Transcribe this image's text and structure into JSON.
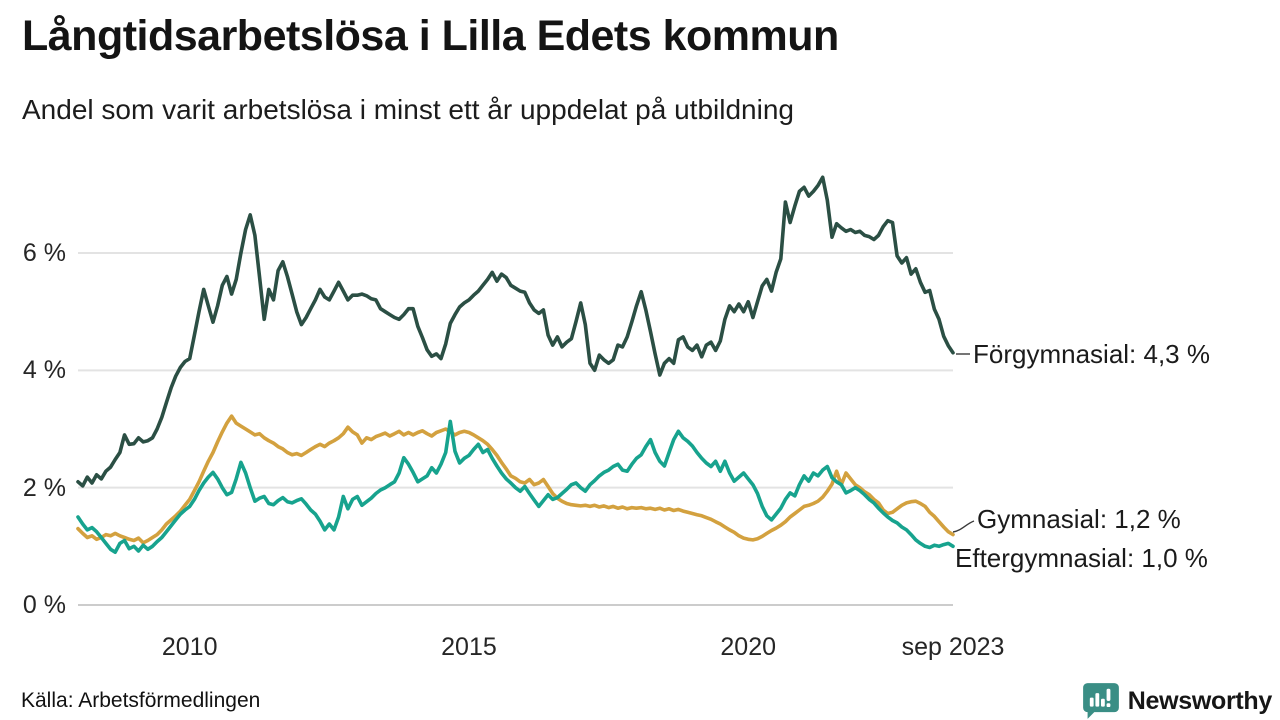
{
  "title": "Långtidsarbetslösa i Lilla Edets kommun",
  "subtitle": "Andel som varit arbetslösa i minst ett år uppdelat på utbildning",
  "source": "Källa: Arbetsförmedlingen",
  "branding": {
    "name": "Newsworthy",
    "color": "#3a8e85",
    "icon": "bar-chart-speech-bubble-icon"
  },
  "colors": {
    "forgymnasial": "#2b4f44",
    "gymnasial": "#d3a13f",
    "eftergymnasial": "#17a38e",
    "gridline": "#e3e3e3",
    "zeroline": "#cccccc",
    "connector": "#3a3a3a"
  },
  "chart_data": {
    "type": "line",
    "title": "Långtidsarbetslösa i Lilla Edets kommun",
    "subtitle": "Andel som varit arbetslösa i minst ett år uppdelat på utbildning",
    "x_unit": "month",
    "x_start": 2008.0,
    "x_end": 2023.6667,
    "x_note": "monthly values Jan 2008 - Sep 2023",
    "ylim": [
      0,
      7.5
    ],
    "ytick_values": [
      0,
      2,
      4,
      6
    ],
    "ytick_labels": [
      "0 %",
      "2 %",
      "4 %",
      "6 %"
    ],
    "xticks": [
      {
        "label": "2010",
        "t": 2010.0
      },
      {
        "label": "2015",
        "t": 2015.0
      },
      {
        "label": "2020",
        "t": 2020.0
      },
      {
        "label": "sep 2023",
        "t": 2023.6667
      }
    ],
    "grid": "horizontal-only",
    "legend_position": "end-of-line-labels",
    "series": [
      {
        "name": "Förgymnasial",
        "end_label": "Förgymnasial: 4,3 %",
        "end_value": 4.3,
        "color": "#2b4f44",
        "values": [
          2.1,
          2.03,
          2.18,
          2.08,
          2.22,
          2.15,
          2.28,
          2.35,
          2.48,
          2.6,
          2.9,
          2.74,
          2.75,
          2.85,
          2.78,
          2.8,
          2.85,
          3.0,
          3.2,
          3.45,
          3.7,
          3.9,
          4.05,
          4.15,
          4.2,
          4.6,
          5.0,
          5.38,
          5.1,
          4.82,
          5.1,
          5.45,
          5.6,
          5.3,
          5.55,
          6.0,
          6.4,
          6.65,
          6.3,
          5.6,
          4.87,
          5.38,
          5.2,
          5.7,
          5.85,
          5.6,
          5.3,
          5.0,
          4.78,
          4.9,
          5.05,
          5.2,
          5.38,
          5.25,
          5.2,
          5.35,
          5.5,
          5.35,
          5.2,
          5.28,
          5.28,
          5.3,
          5.27,
          5.22,
          5.2,
          5.05,
          5.0,
          4.95,
          4.9,
          4.87,
          4.95,
          5.05,
          5.05,
          4.75,
          4.56,
          4.35,
          4.24,
          4.28,
          4.2,
          4.45,
          4.8,
          4.95,
          5.08,
          5.15,
          5.2,
          5.28,
          5.35,
          5.45,
          5.55,
          5.67,
          5.52,
          5.64,
          5.58,
          5.45,
          5.4,
          5.35,
          5.33,
          5.15,
          5.03,
          4.97,
          5.03,
          4.6,
          4.43,
          4.57,
          4.4,
          4.48,
          4.54,
          4.83,
          5.15,
          4.78,
          4.12,
          4.0,
          4.26,
          4.18,
          4.12,
          4.18,
          4.43,
          4.4,
          4.57,
          4.83,
          5.1,
          5.34,
          5.03,
          4.66,
          4.28,
          3.92,
          4.12,
          4.2,
          4.12,
          4.52,
          4.57,
          4.4,
          4.34,
          4.43,
          4.23,
          4.43,
          4.48,
          4.34,
          4.5,
          4.87,
          5.1,
          5.0,
          5.13,
          5.0,
          5.17,
          4.9,
          5.17,
          5.44,
          5.55,
          5.35,
          5.67,
          5.9,
          6.87,
          6.52,
          6.8,
          7.05,
          7.12,
          6.97,
          7.05,
          7.15,
          7.29,
          6.9,
          6.27,
          6.5,
          6.43,
          6.37,
          6.4,
          6.35,
          6.37,
          6.3,
          6.28,
          6.23,
          6.3,
          6.45,
          6.55,
          6.52,
          5.95,
          5.83,
          5.92,
          5.64,
          5.73,
          5.5,
          5.33,
          5.36,
          5.04,
          4.87,
          4.58,
          4.42,
          4.3
        ]
      },
      {
        "name": "Gymnasial",
        "end_label": "Gymnasial: 1,2 %",
        "end_value": 1.2,
        "color": "#d3a13f",
        "values": [
          1.3,
          1.22,
          1.15,
          1.18,
          1.12,
          1.15,
          1.2,
          1.18,
          1.22,
          1.18,
          1.15,
          1.12,
          1.1,
          1.14,
          1.06,
          1.1,
          1.15,
          1.2,
          1.28,
          1.38,
          1.45,
          1.52,
          1.6,
          1.7,
          1.8,
          1.95,
          2.1,
          2.28,
          2.45,
          2.6,
          2.78,
          2.95,
          3.1,
          3.22,
          3.1,
          3.05,
          3.0,
          2.95,
          2.9,
          2.92,
          2.85,
          2.8,
          2.76,
          2.7,
          2.66,
          2.6,
          2.56,
          2.58,
          2.55,
          2.6,
          2.65,
          2.7,
          2.74,
          2.7,
          2.76,
          2.8,
          2.85,
          2.92,
          3.03,
          2.95,
          2.9,
          2.76,
          2.85,
          2.82,
          2.87,
          2.9,
          2.93,
          2.88,
          2.92,
          2.96,
          2.9,
          2.94,
          2.9,
          2.94,
          2.97,
          2.92,
          2.88,
          2.94,
          2.97,
          3.0,
          2.95,
          2.9,
          2.94,
          2.96,
          2.94,
          2.9,
          2.85,
          2.8,
          2.74,
          2.65,
          2.55,
          2.43,
          2.32,
          2.2,
          2.16,
          2.1,
          2.08,
          2.14,
          2.05,
          2.08,
          2.14,
          2.02,
          1.9,
          1.82,
          1.77,
          1.73,
          1.71,
          1.7,
          1.69,
          1.7,
          1.68,
          1.7,
          1.67,
          1.69,
          1.66,
          1.68,
          1.65,
          1.67,
          1.64,
          1.66,
          1.65,
          1.66,
          1.64,
          1.65,
          1.63,
          1.65,
          1.62,
          1.64,
          1.61,
          1.63,
          1.6,
          1.58,
          1.56,
          1.54,
          1.52,
          1.49,
          1.46,
          1.42,
          1.38,
          1.33,
          1.28,
          1.24,
          1.18,
          1.14,
          1.12,
          1.11,
          1.13,
          1.17,
          1.22,
          1.27,
          1.31,
          1.36,
          1.42,
          1.5,
          1.56,
          1.62,
          1.68,
          1.7,
          1.73,
          1.77,
          1.84,
          1.94,
          2.06,
          2.28,
          2.05,
          2.25,
          2.15,
          2.05,
          2.0,
          1.93,
          1.88,
          1.8,
          1.74,
          1.62,
          1.56,
          1.58,
          1.64,
          1.7,
          1.74,
          1.76,
          1.77,
          1.73,
          1.68,
          1.58,
          1.51,
          1.42,
          1.33,
          1.25,
          1.2
        ]
      },
      {
        "name": "Eftergymnasial",
        "end_label": "Eftergymnasial: 1,0 %",
        "end_value": 1.0,
        "color": "#17a38e",
        "values": [
          1.5,
          1.38,
          1.28,
          1.32,
          1.25,
          1.15,
          1.05,
          0.95,
          0.9,
          1.05,
          1.1,
          0.96,
          1.0,
          0.92,
          1.02,
          0.95,
          1.0,
          1.08,
          1.15,
          1.25,
          1.35,
          1.45,
          1.55,
          1.62,
          1.68,
          1.8,
          1.95,
          2.08,
          2.18,
          2.26,
          2.15,
          2.0,
          1.88,
          1.92,
          2.15,
          2.43,
          2.25,
          2.0,
          1.77,
          1.82,
          1.85,
          1.73,
          1.71,
          1.78,
          1.83,
          1.76,
          1.74,
          1.78,
          1.81,
          1.72,
          1.62,
          1.55,
          1.43,
          1.28,
          1.38,
          1.28,
          1.5,
          1.85,
          1.64,
          1.8,
          1.85,
          1.7,
          1.76,
          1.82,
          1.9,
          1.96,
          2.0,
          2.05,
          2.1,
          2.25,
          2.51,
          2.4,
          2.26,
          2.1,
          2.15,
          2.2,
          2.34,
          2.25,
          2.4,
          2.6,
          3.13,
          2.62,
          2.42,
          2.5,
          2.55,
          2.65,
          2.74,
          2.6,
          2.65,
          2.5,
          2.37,
          2.25,
          2.15,
          2.08,
          2.0,
          1.94,
          2.02,
          1.9,
          1.79,
          1.68,
          1.78,
          1.88,
          1.8,
          1.83,
          1.9,
          1.97,
          2.05,
          2.08,
          2.0,
          1.94,
          2.05,
          2.12,
          2.2,
          2.26,
          2.3,
          2.36,
          2.4,
          2.3,
          2.28,
          2.4,
          2.5,
          2.56,
          2.7,
          2.82,
          2.6,
          2.45,
          2.37,
          2.6,
          2.82,
          2.96,
          2.85,
          2.79,
          2.71,
          2.6,
          2.5,
          2.42,
          2.36,
          2.45,
          2.28,
          2.45,
          2.25,
          2.11,
          2.18,
          2.25,
          2.15,
          2.05,
          1.9,
          1.68,
          1.52,
          1.45,
          1.55,
          1.65,
          1.8,
          1.91,
          1.86,
          2.05,
          2.2,
          2.11,
          2.25,
          2.2,
          2.3,
          2.36,
          2.17,
          2.1,
          2.05,
          1.91,
          1.95,
          2.0,
          1.95,
          1.88,
          1.8,
          1.74,
          1.65,
          1.57,
          1.5,
          1.44,
          1.4,
          1.33,
          1.28,
          1.2,
          1.11,
          1.05,
          1.0,
          0.98,
          1.02,
          1.0,
          1.03,
          1.05,
          1.0
        ]
      }
    ]
  }
}
